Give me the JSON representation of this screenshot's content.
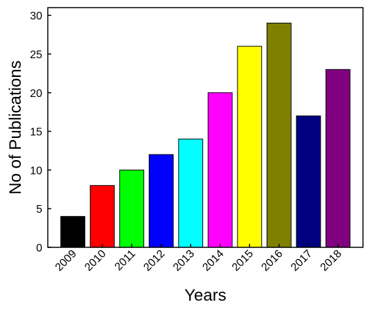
{
  "chart_data": {
    "type": "bar",
    "title": "",
    "xlabel": "Years",
    "ylabel": "No of Publications",
    "categories": [
      "2009",
      "2010",
      "2011",
      "2012",
      "2013",
      "2014",
      "2015",
      "2016",
      "2017",
      "2018"
    ],
    "values": [
      4,
      8,
      10,
      12,
      14,
      20,
      26,
      29,
      17,
      23
    ],
    "colors": [
      "#000000",
      "#ff0000",
      "#00ff00",
      "#0000ff",
      "#00ffff",
      "#ff00ff",
      "#ffff00",
      "#808000",
      "#000080",
      "#800080"
    ],
    "ylim": [
      0,
      31
    ],
    "yticks": [
      0,
      5,
      10,
      15,
      20,
      25,
      30
    ],
    "grid": false,
    "legend": "none"
  }
}
